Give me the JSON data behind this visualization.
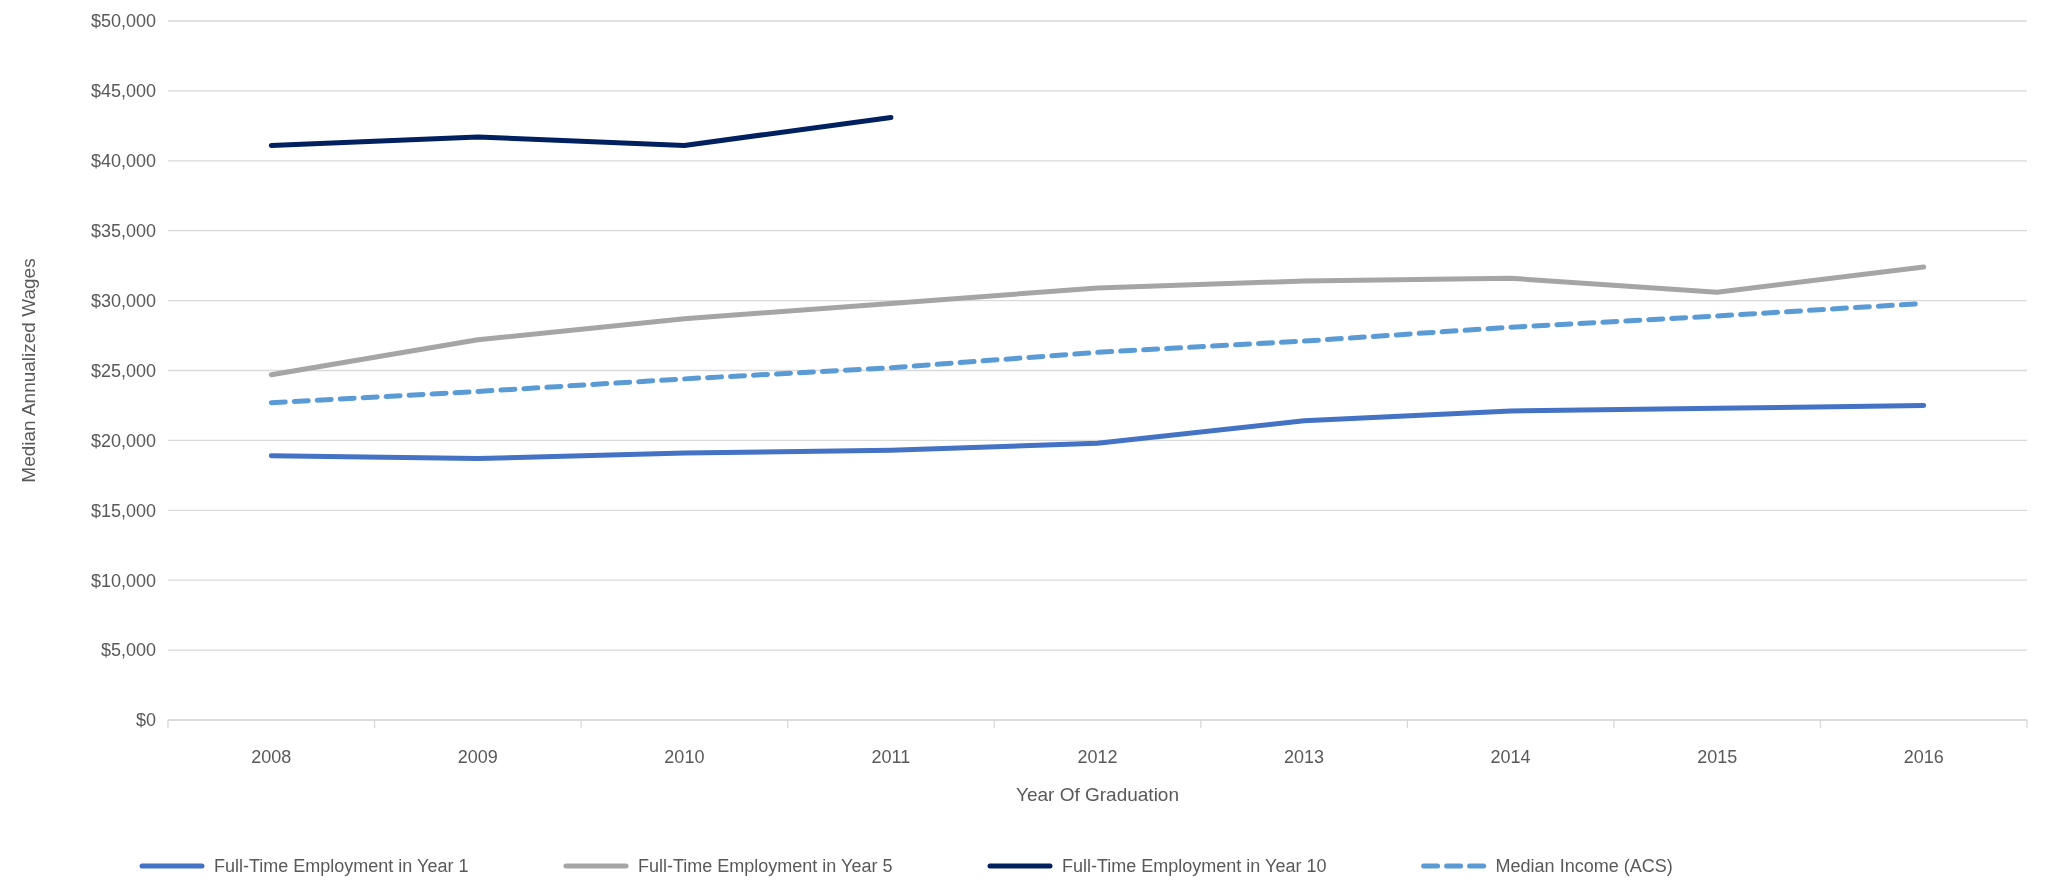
{
  "chart_data": {
    "type": "line",
    "xlabel": "Year Of Graduation",
    "ylabel": "Median Annualized Wages",
    "categories": [
      "2008",
      "2009",
      "2010",
      "2011",
      "2012",
      "2013",
      "2014",
      "2015",
      "2016"
    ],
    "series": [
      {
        "name": "Full-Time Employment in Year 1",
        "color": "#4472c4",
        "values": [
          18900,
          18700,
          19100,
          19300,
          19800,
          21400,
          22100,
          22300,
          22500
        ]
      },
      {
        "name": "Full-Time Employment in Year 5",
        "color": "#a5a5a5",
        "values": [
          24700,
          27200,
          28700,
          29800,
          30900,
          31400,
          31600,
          30600,
          32400
        ]
      },
      {
        "name": "Full-Time Employment in Year 10",
        "color": "#002060",
        "values": [
          41100,
          41700,
          41100,
          43100,
          null,
          null,
          null,
          null,
          null
        ]
      },
      {
        "name": "Median Income (ACS)",
        "color": "#5b9bd5",
        "line_style": "dashed",
        "values": [
          22700,
          23500,
          24400,
          25200,
          26300,
          27100,
          28100,
          28900,
          29800
        ]
      }
    ],
    "ylim": [
      0,
      50000
    ],
    "yticks": [
      {
        "value": 0,
        "label": "$0"
      },
      {
        "value": 5000,
        "label": "$5,000"
      },
      {
        "value": 10000,
        "label": "$10,000"
      },
      {
        "value": 15000,
        "label": "$15,000"
      },
      {
        "value": 20000,
        "label": "$20,000"
      },
      {
        "value": 25000,
        "label": "$25,000"
      },
      {
        "value": 30000,
        "label": "$30,000"
      },
      {
        "value": 35000,
        "label": "$35,000"
      },
      {
        "value": 40000,
        "label": "$40,000"
      },
      {
        "value": 45000,
        "label": "$45,000"
      },
      {
        "value": 50000,
        "label": "$50,000"
      }
    ],
    "grid": "y",
    "legend": "bottom",
    "marker": "none"
  }
}
